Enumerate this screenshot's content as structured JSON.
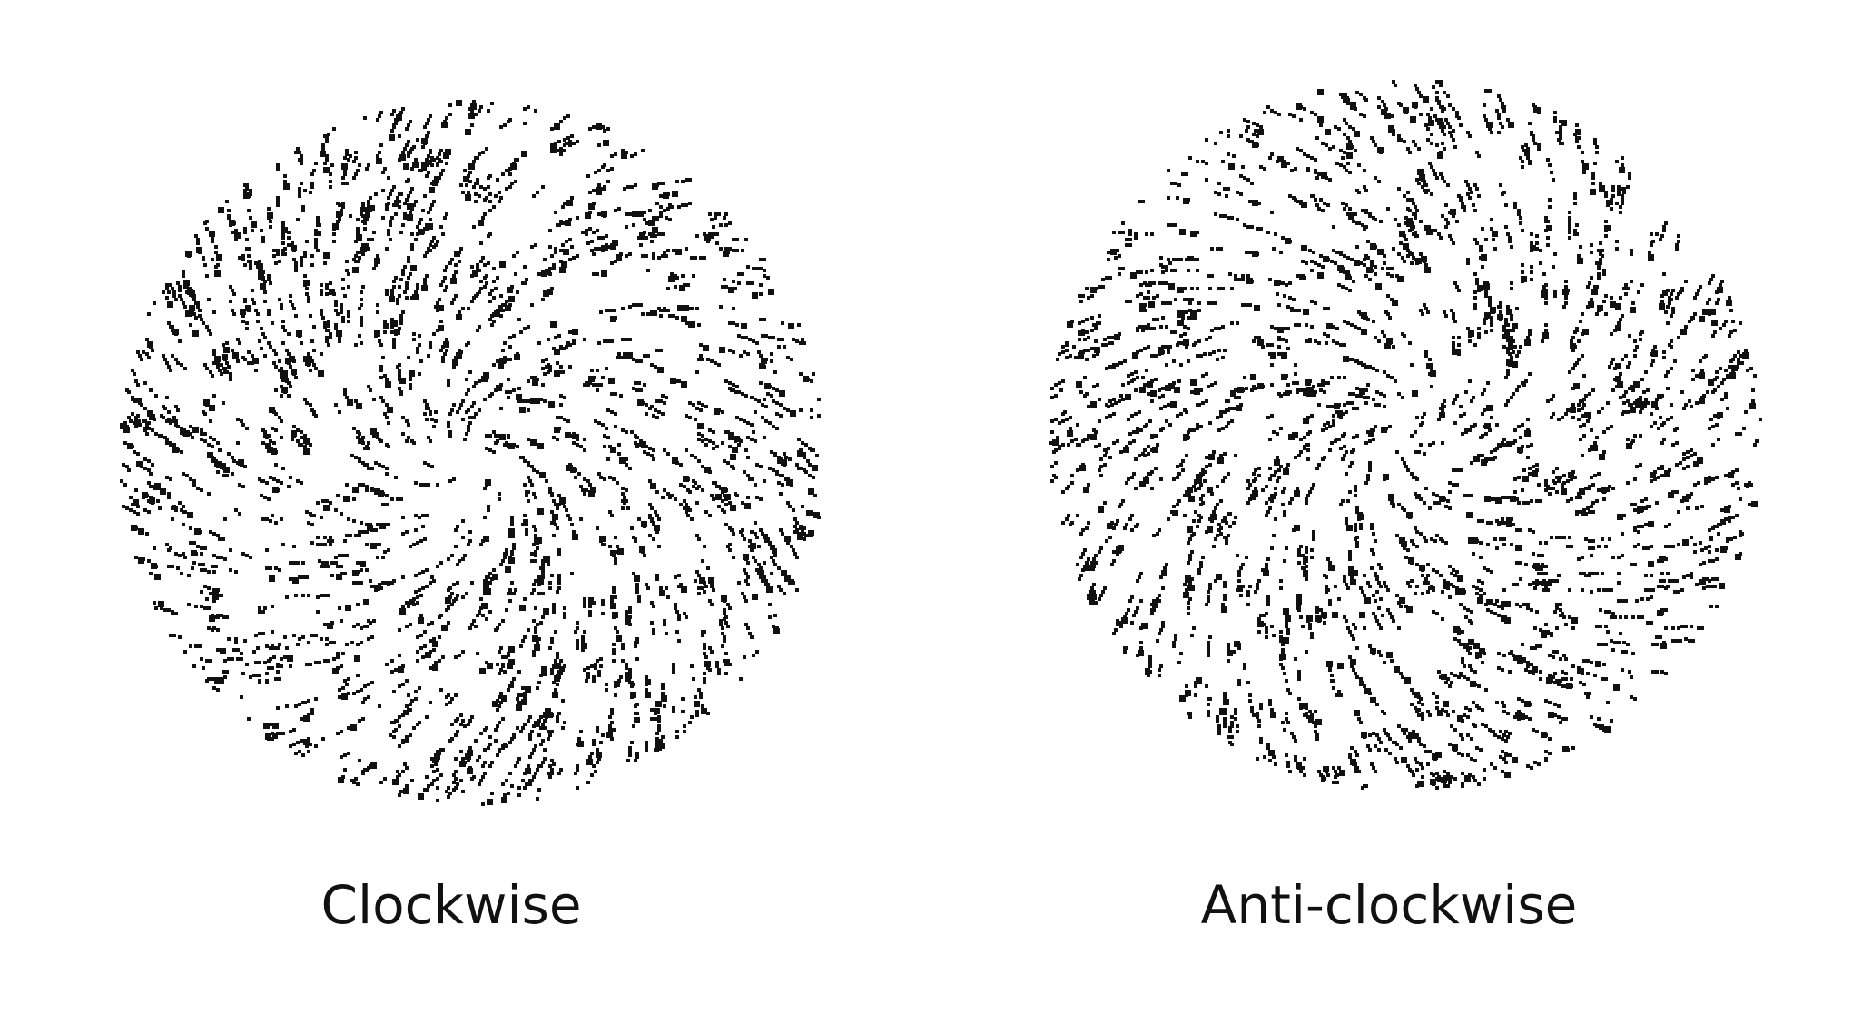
{
  "patterns": [
    {
      "id": "cw",
      "caption": "Clockwise",
      "swirl_direction": "clockwise",
      "dot_color": "#111111"
    },
    {
      "id": "acw",
      "caption": "Anti-clockwise",
      "swirl_direction": "anti-clockwise",
      "dot_color": "#111111"
    }
  ]
}
